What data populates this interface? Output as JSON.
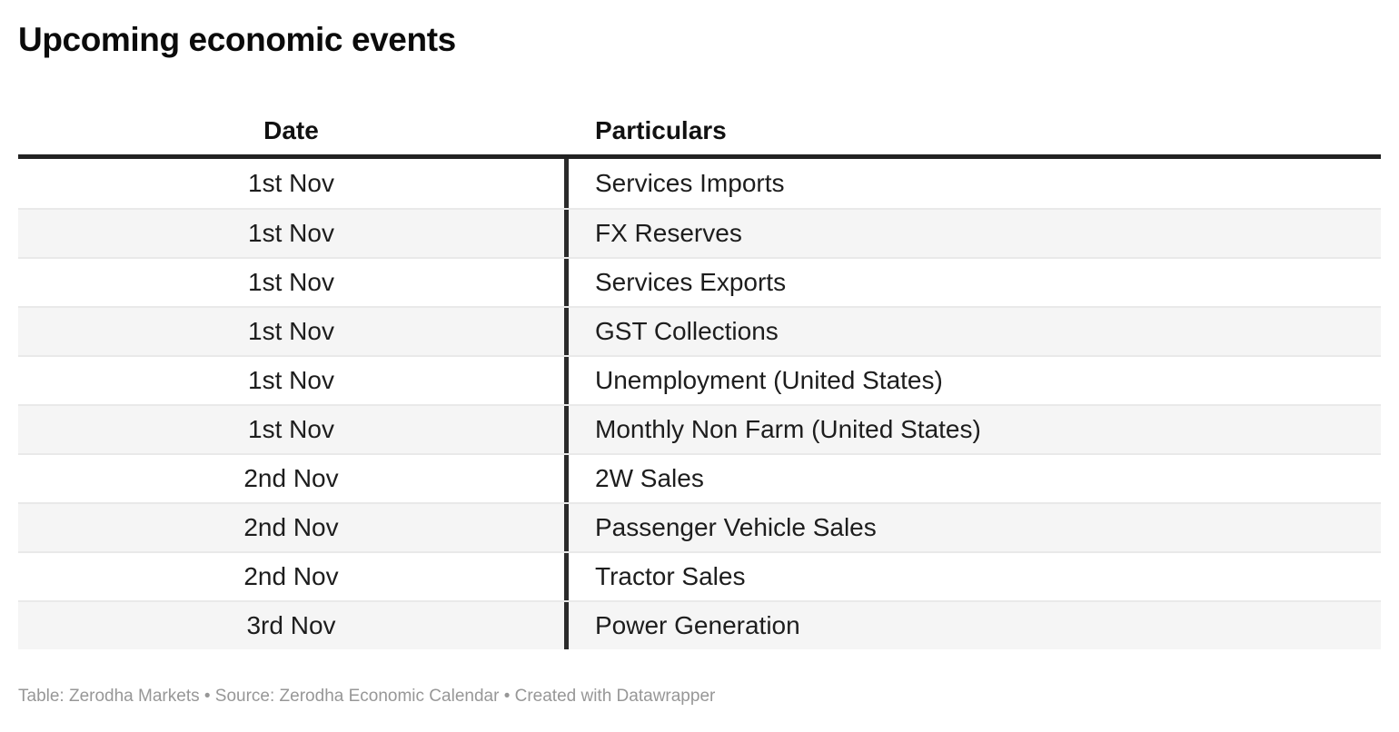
{
  "title": "Upcoming economic events",
  "chart_data": {
    "type": "table",
    "title": "Upcoming economic events",
    "columns": [
      "Date",
      "Particulars"
    ],
    "rows": [
      [
        "1st Nov",
        "Services Imports"
      ],
      [
        "1st Nov",
        "FX Reserves"
      ],
      [
        "1st Nov",
        "Services Exports"
      ],
      [
        "1st Nov",
        "GST Collections"
      ],
      [
        "1st Nov",
        "Unemployment (United States)"
      ],
      [
        "1st Nov",
        "Monthly Non Farm (United States)"
      ],
      [
        "2nd Nov",
        "2W Sales"
      ],
      [
        "2nd Nov",
        "Passenger Vehicle Sales"
      ],
      [
        "2nd Nov",
        "Tractor Sales"
      ],
      [
        "3rd Nov",
        "Power Generation"
      ]
    ],
    "layout": {
      "date_column_align": "center",
      "particulars_column_align": "left",
      "zebra_striping": true,
      "header_rule": true,
      "column_divider": true
    }
  },
  "footer": {
    "text": "Table: Zerodha Markets • Source: Zerodha Economic Calendar • Created with Datawrapper"
  },
  "colors": {
    "background": "#ffffff",
    "title_text": "#0b0b0b",
    "body_text": "#1d1d1d",
    "header_text": "#111111",
    "zebra_row": "#f5f5f5",
    "row_separator": "#e9e9e9",
    "header_rule": "#222222",
    "column_divider": "#2b2b2b",
    "footer_text": "#979797"
  }
}
